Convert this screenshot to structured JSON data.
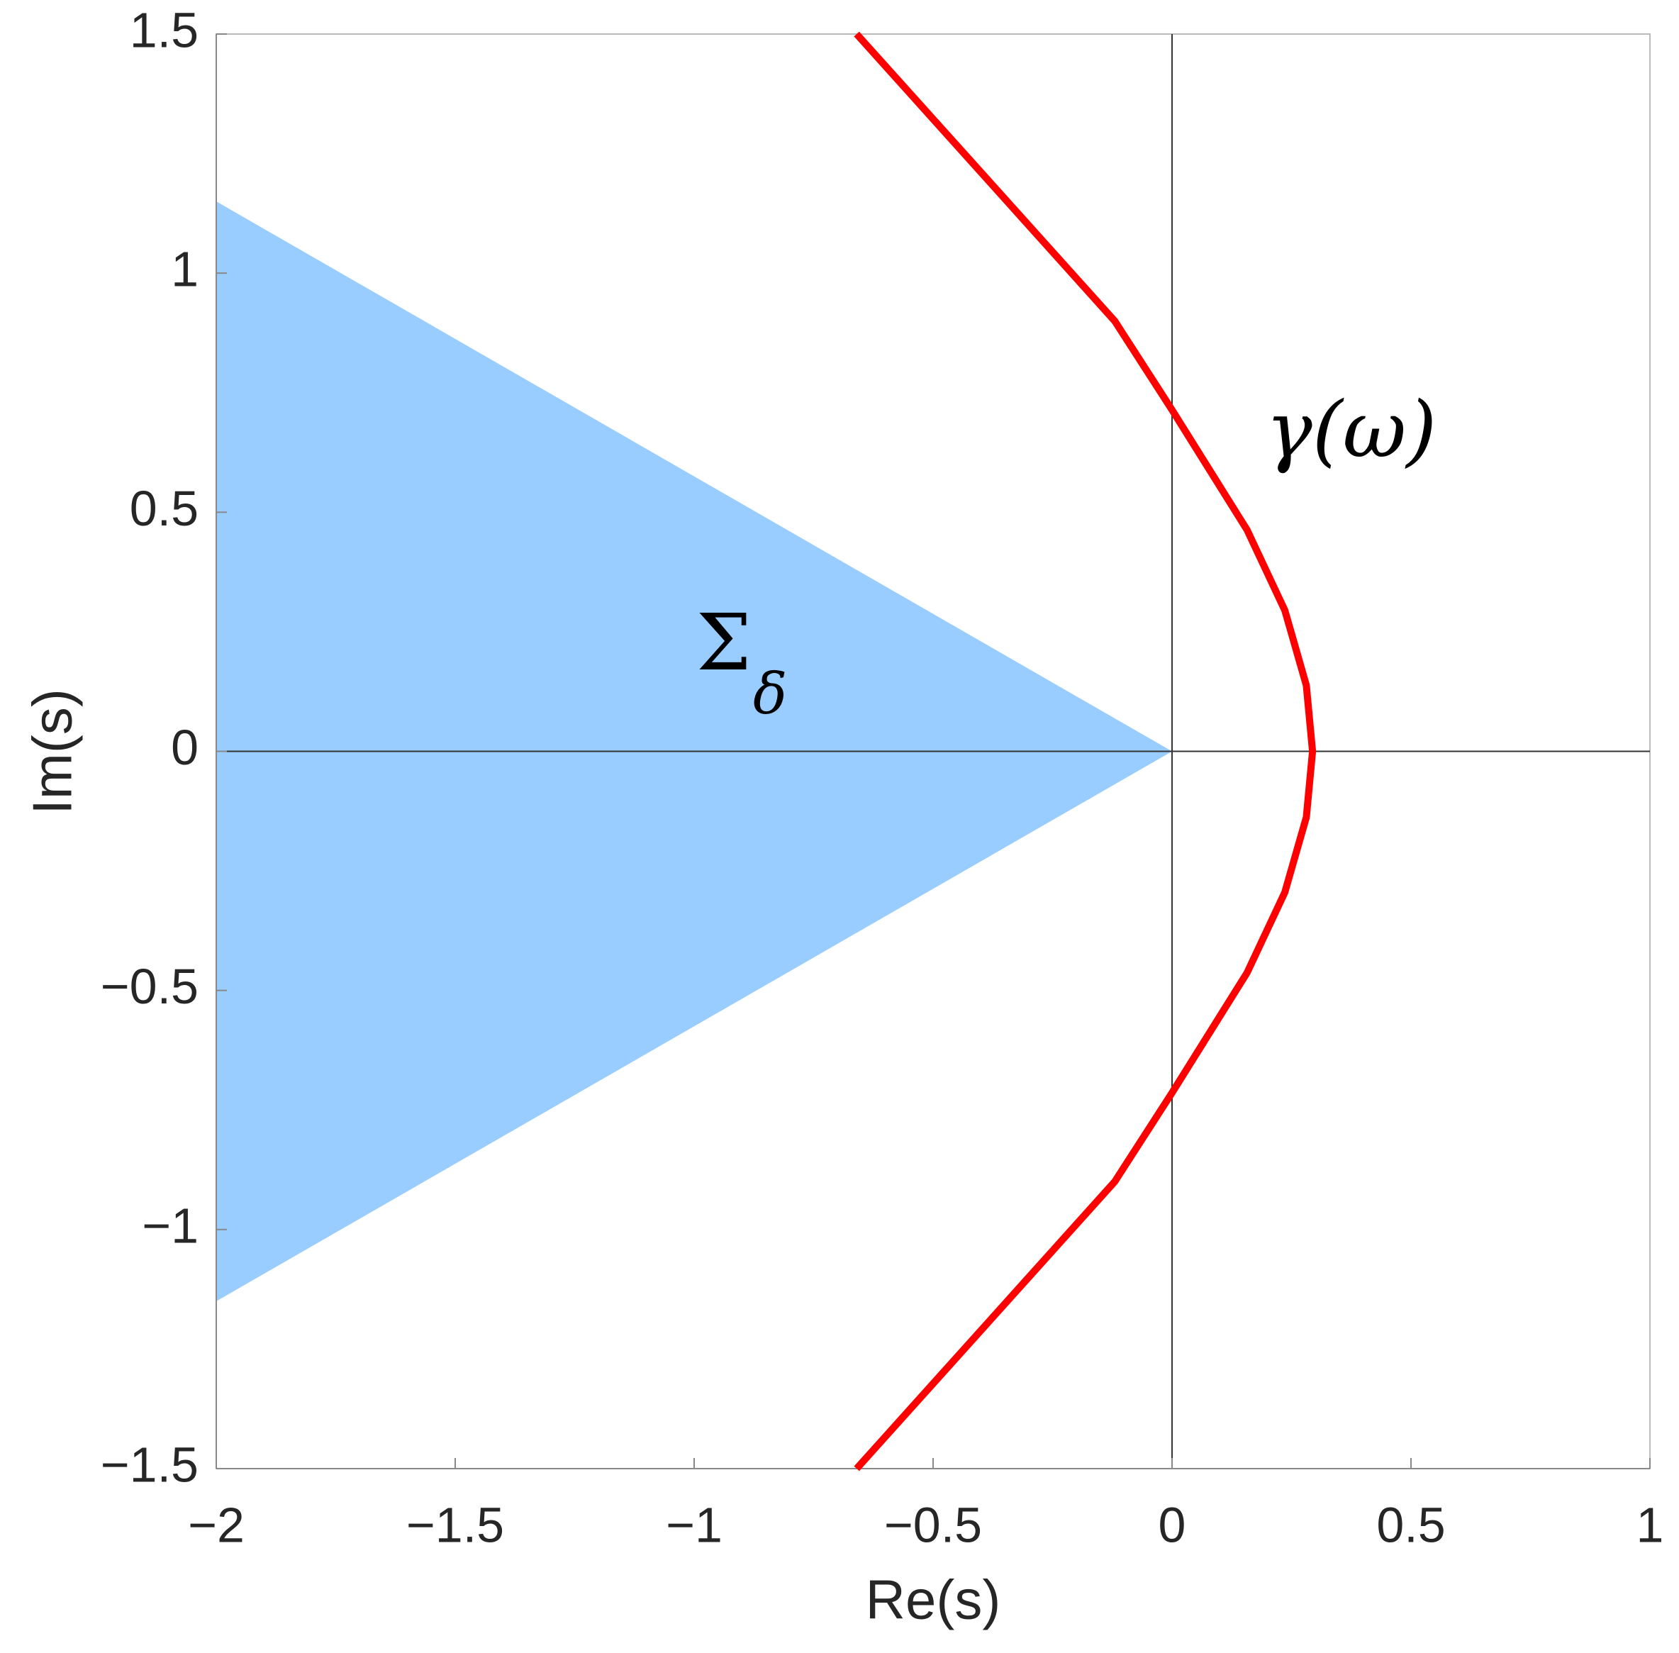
{
  "chart_data": {
    "type": "line",
    "xlabel": "Re(s)",
    "ylabel": "Im(s)",
    "xlim": [
      -2,
      1
    ],
    "ylim": [
      -1.5,
      1.5
    ],
    "xticks": [
      {
        "value": -2,
        "label": "−2"
      },
      {
        "value": -1.5,
        "label": "−1.5"
      },
      {
        "value": -1,
        "label": "−1"
      },
      {
        "value": -0.5,
        "label": "−0.5"
      },
      0,
      0.5,
      1
    ],
    "yticks": [
      {
        "value": -1.5,
        "label": "−1.5"
      },
      {
        "value": -1,
        "label": "−1"
      },
      {
        "value": -0.5,
        "label": "−0.5"
      },
      0,
      0.5,
      1,
      1.5
    ],
    "region": {
      "color": "#99ccff",
      "x": [
        -2,
        0,
        -2
      ],
      "y": [
        1.15,
        0,
        -1.15
      ]
    },
    "series": [
      {
        "color": "#ff0000",
        "x": [
          -0.66,
          -0.48,
          -0.3,
          -0.12,
          0,
          0.157,
          0.236,
          0.281,
          0.294,
          0.281,
          0.236,
          0.157,
          0,
          -0.12,
          -0.3,
          -0.48,
          -0.66
        ],
        "values": [
          1.5,
          1.3,
          1.1,
          0.9,
          0.714,
          0.463,
          0.295,
          0.138,
          0,
          -0.138,
          -0.295,
          -0.463,
          -0.714,
          -0.9,
          -1.1,
          -1.3,
          -1.5
        ]
      }
    ],
    "annotations": {
      "sigma": "Σ",
      "delta": "δ",
      "gamma": "γ(ω)"
    }
  }
}
